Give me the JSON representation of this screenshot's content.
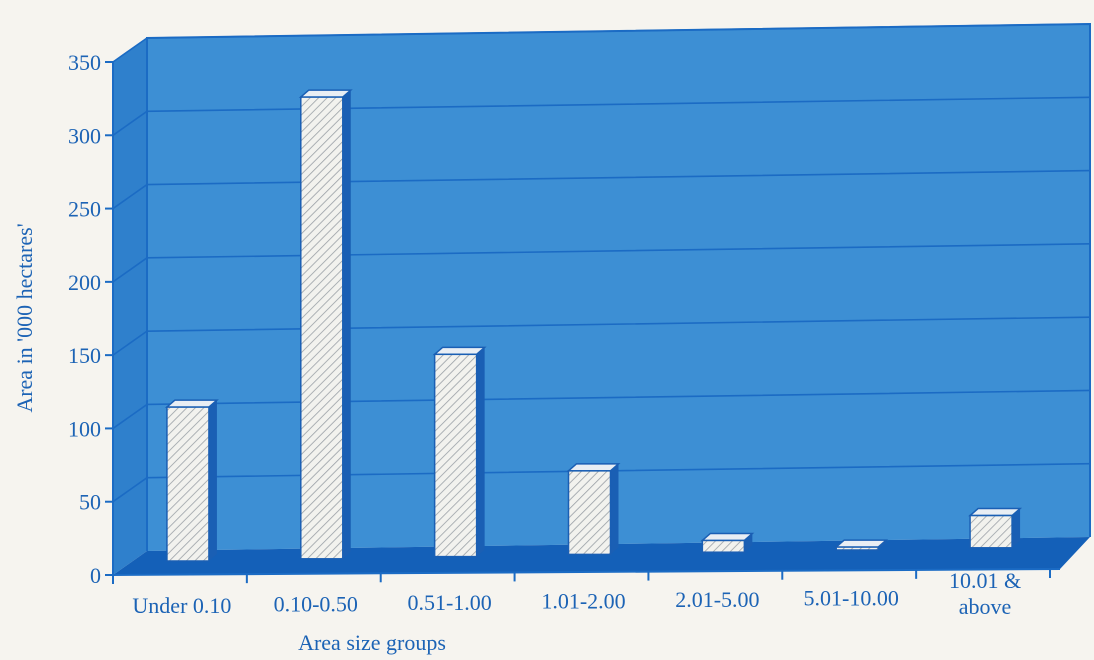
{
  "chart_data": {
    "type": "bar",
    "title": "",
    "xlabel": "Area size groups",
    "ylabel": "Area in '000 hectares'",
    "ylim": [
      0,
      350
    ],
    "yticks": [
      "0",
      "50",
      "100",
      "150",
      "200",
      "250",
      "300",
      "350"
    ],
    "categories": [
      "Under 0.10",
      "0.10-0.50",
      "0.51-1.00",
      "1.01-2.00",
      "2.01-5.00",
      "5.01-10.00",
      "10.01 & above"
    ],
    "category_lines": [
      [
        "Under 0.10"
      ],
      [
        "0.10-0.50"
      ],
      [
        "0.51-1.00"
      ],
      [
        "1.01-2.00"
      ],
      [
        "2.01-5.00"
      ],
      [
        "5.01-10.00"
      ],
      [
        "10.01 &",
        "above"
      ]
    ],
    "values": [
      105,
      315,
      138,
      57,
      8,
      2,
      22
    ],
    "grid": true,
    "colors": {
      "background": "#3d8fd4",
      "floor": "#1460b8",
      "gridline": "#1b6bc4",
      "bar_face": "#f2f2ee",
      "bar_hatch": "#9aa0a6",
      "bar_side": "#1a5fb4",
      "bar_top": "#e9eef4",
      "text": "#1c63b5"
    }
  }
}
